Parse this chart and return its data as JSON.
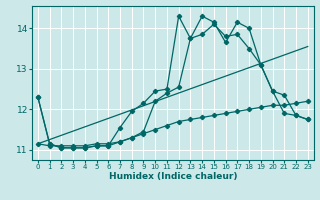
{
  "bg_color": "#cce8e8",
  "grid_color": "#ffffff",
  "line_color": "#006666",
  "xlabel": "Humidex (Indice chaleur)",
  "xlim": [
    -0.5,
    23.5
  ],
  "ylim": [
    10.75,
    14.55
  ],
  "yticks": [
    11,
    12,
    13,
    14
  ],
  "xticks": [
    0,
    1,
    2,
    3,
    4,
    5,
    6,
    7,
    8,
    9,
    10,
    11,
    12,
    13,
    14,
    15,
    16,
    17,
    18,
    19,
    20,
    21,
    22,
    23
  ],
  "series_volatile_x": [
    0,
    1,
    2,
    3,
    4,
    5,
    6,
    7,
    8,
    9,
    10,
    11,
    12,
    13,
    14,
    15,
    16,
    17,
    18,
    19,
    20,
    21,
    22,
    23
  ],
  "series_volatile_y": [
    12.3,
    11.15,
    11.05,
    11.05,
    11.05,
    11.1,
    11.1,
    11.55,
    11.95,
    12.15,
    12.45,
    12.5,
    14.3,
    13.75,
    14.3,
    14.15,
    13.65,
    14.15,
    14.0,
    13.1,
    12.45,
    12.35,
    11.85,
    11.75
  ],
  "series_smooth_x": [
    0,
    1,
    2,
    3,
    4,
    5,
    6,
    7,
    8,
    9,
    10,
    11,
    12,
    13,
    14,
    15,
    16,
    17,
    18,
    19,
    20,
    21,
    22,
    23
  ],
  "series_smooth_y": [
    12.3,
    11.15,
    11.05,
    11.05,
    11.05,
    11.1,
    11.1,
    11.2,
    11.3,
    11.45,
    12.2,
    12.4,
    12.55,
    13.75,
    13.85,
    14.1,
    13.8,
    13.85,
    13.5,
    13.1,
    12.45,
    11.9,
    11.85,
    11.75
  ],
  "series_flat_x": [
    0,
    1,
    2,
    3,
    4,
    5,
    6,
    7,
    8,
    9,
    10,
    11,
    12,
    13,
    14,
    15,
    16,
    17,
    18,
    19,
    20,
    21,
    22,
    23
  ],
  "series_flat_y": [
    11.15,
    11.1,
    11.1,
    11.1,
    11.1,
    11.15,
    11.15,
    11.2,
    11.3,
    11.4,
    11.5,
    11.6,
    11.7,
    11.75,
    11.8,
    11.85,
    11.9,
    11.95,
    12.0,
    12.05,
    12.1,
    12.1,
    12.15,
    12.2
  ],
  "series_line_x": [
    0,
    23
  ],
  "series_line_y": [
    11.15,
    13.55
  ]
}
